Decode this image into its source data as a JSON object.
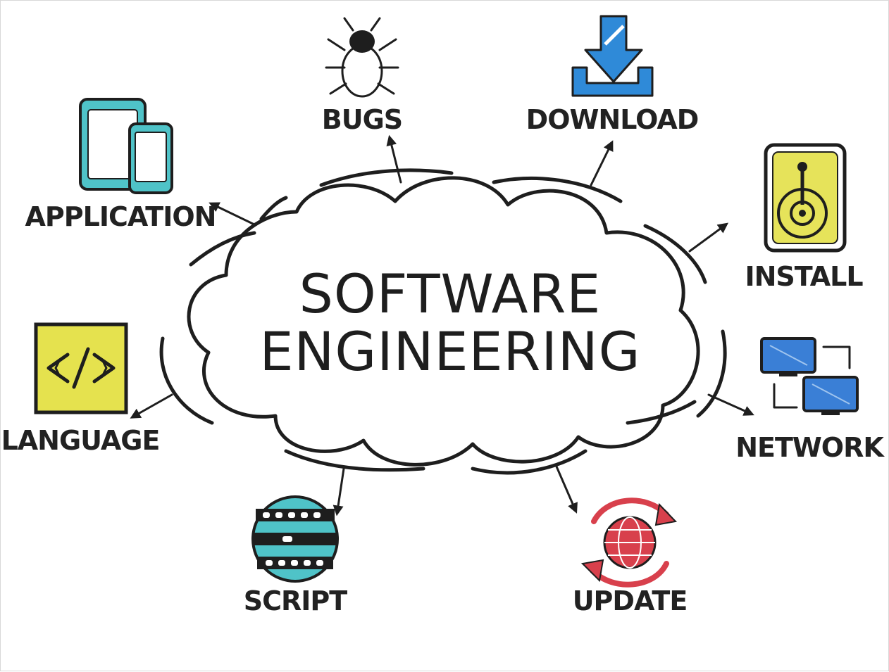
{
  "diagram": {
    "title_line1": "SOFTWARE",
    "title_line2": "ENGINEERING"
  },
  "nodes": {
    "bugs": {
      "label": "BUGS",
      "icon": "bug-icon"
    },
    "download": {
      "label": "DOWNLOAD",
      "icon": "download-icon"
    },
    "application": {
      "label": "APPLICATION",
      "icon": "tablet-phone-icon"
    },
    "install": {
      "label": "INSTALL",
      "icon": "disk-drive-icon"
    },
    "language": {
      "label": "LANGUAGE",
      "icon": "code-icon"
    },
    "network": {
      "label": "NETWORK",
      "icon": "network-icon"
    },
    "script": {
      "label": "SCRIPT",
      "icon": "script-icon"
    },
    "update": {
      "label": "UPDATE",
      "icon": "update-globe-icon"
    }
  },
  "colors": {
    "ink": "#1e1e1e",
    "bug": "#e05a6a",
    "download": "#2f8ad8",
    "device": "#4fc3c8",
    "install": "#e6e35a",
    "language": "#e5e24e",
    "network": "#3a7fd6",
    "script": "#4fc3c8",
    "update": "#d8404c"
  }
}
